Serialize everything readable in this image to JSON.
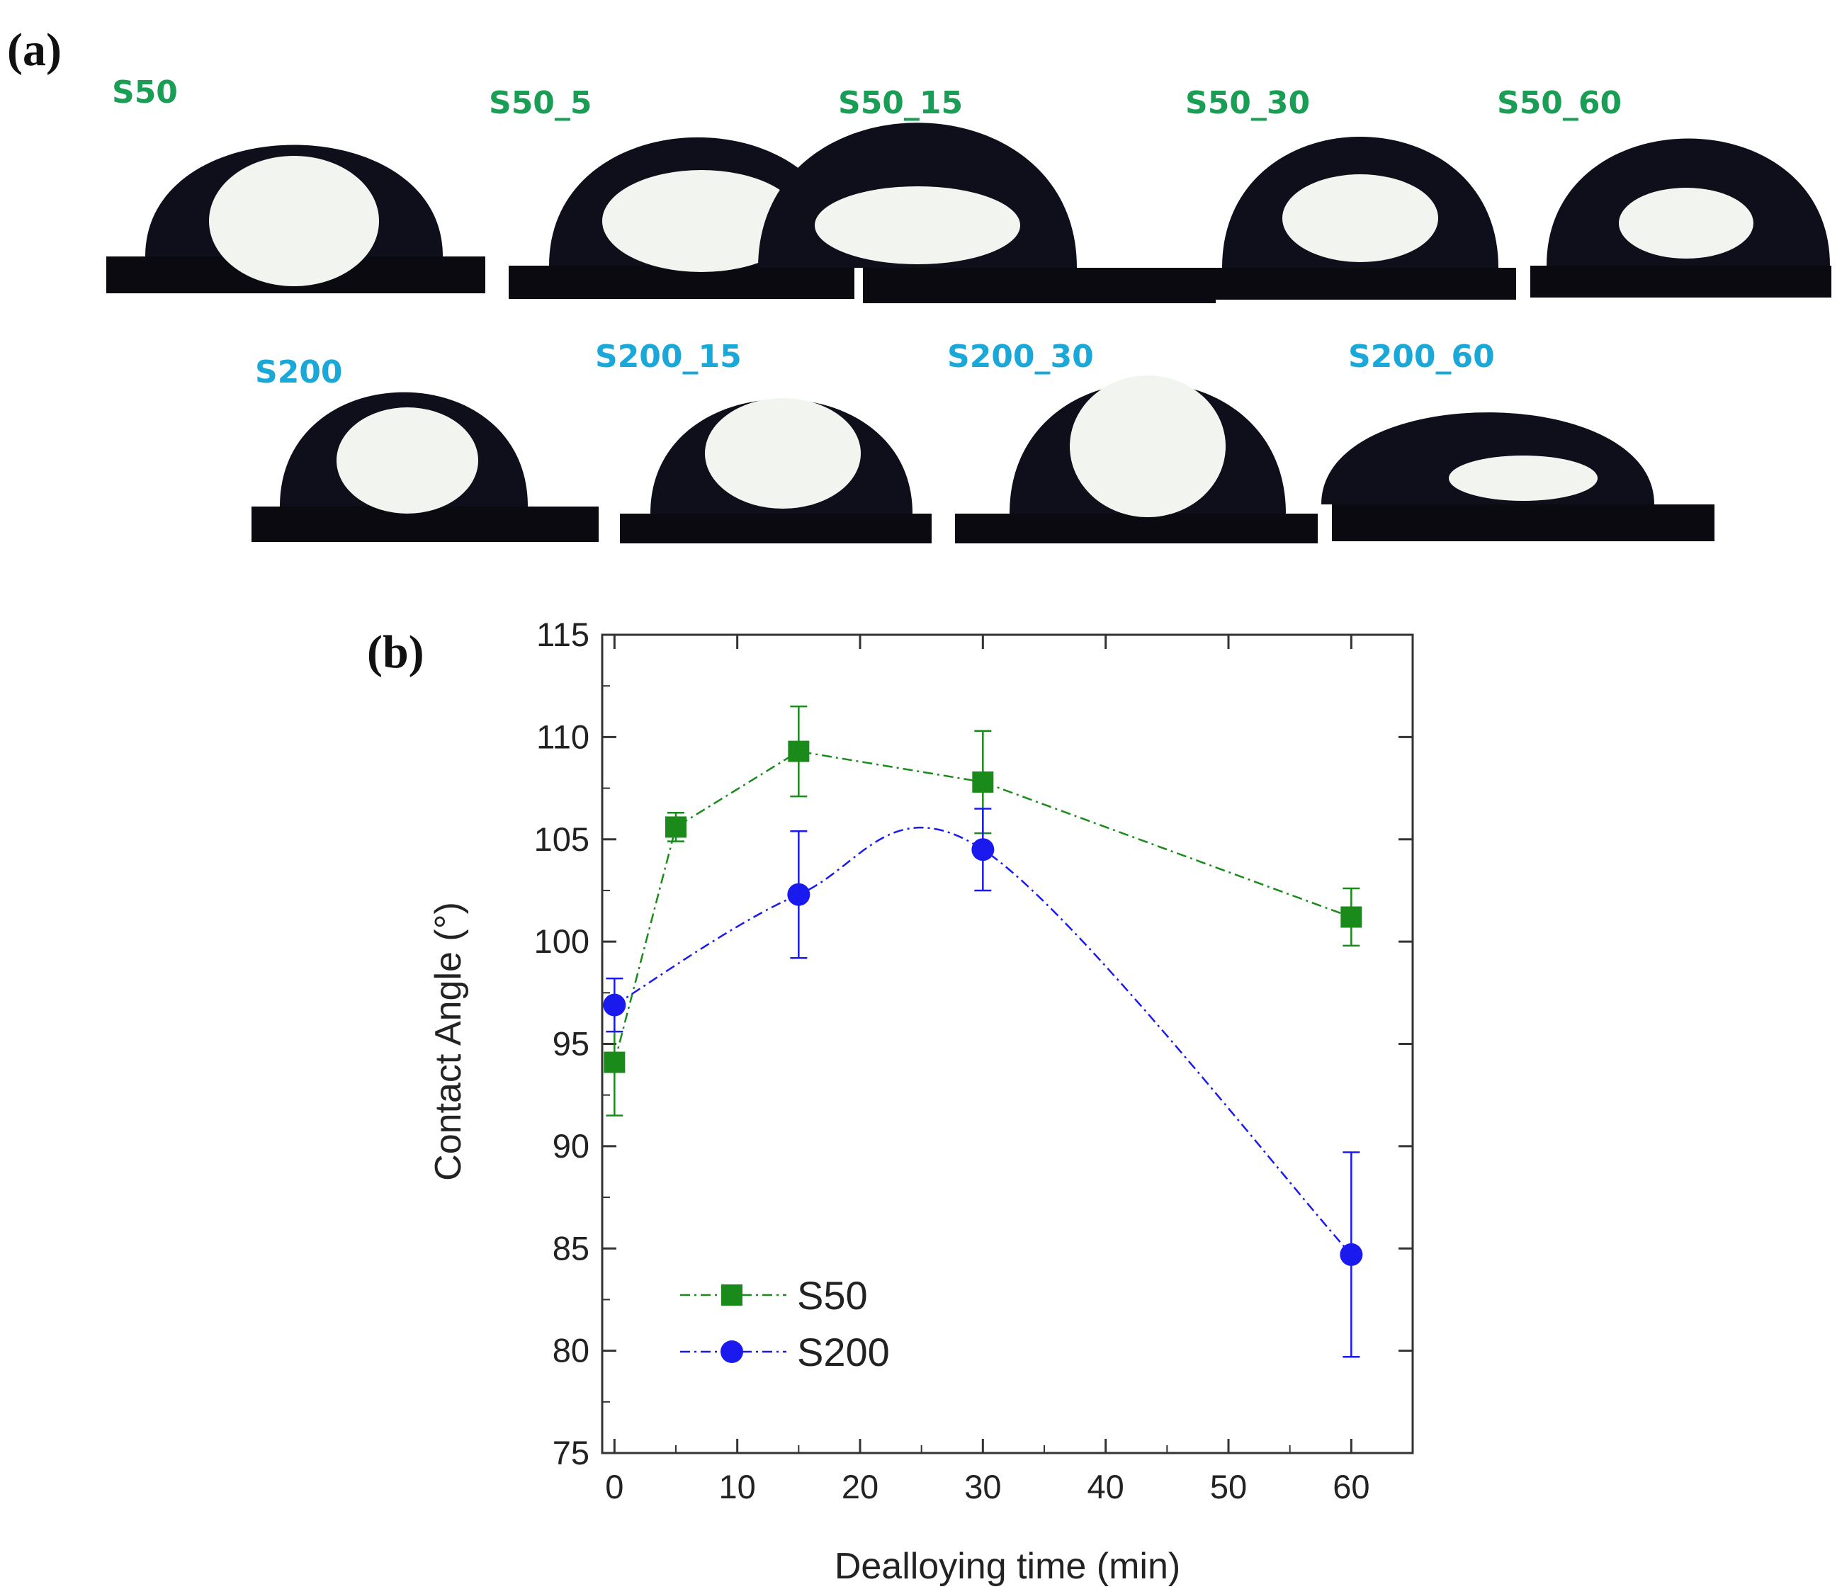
{
  "panel_a": {
    "label": "(a)",
    "row1": [
      {
        "label": "S50"
      },
      {
        "label": "S50_5"
      },
      {
        "label": "S50_15"
      },
      {
        "label": "S50_30"
      },
      {
        "label": "S50_60"
      }
    ],
    "row2": [
      {
        "label": "S200"
      },
      {
        "label": "S200_15"
      },
      {
        "label": "S200_30"
      },
      {
        "label": "S200_60"
      }
    ],
    "colors": {
      "row1_label": "#1a9e55",
      "row2_label": "#1aa8d8",
      "droplet": "#0e0f1a",
      "substrate": "#0a0a10",
      "highlight": "#f2f4f0"
    }
  },
  "panel_b": {
    "label": "(b)"
  },
  "chart_data": {
    "type": "line",
    "xlabel": "Dealloying time (min)",
    "ylabel": "Contact Angle (°)",
    "xlim": [
      -1,
      65
    ],
    "ylim": [
      75,
      115
    ],
    "xticks": [
      0,
      10,
      20,
      30,
      40,
      50,
      60
    ],
    "yticks": [
      75,
      80,
      85,
      90,
      95,
      100,
      105,
      110,
      115
    ],
    "legend_position": "bottom-left",
    "series": [
      {
        "name": "S50",
        "color": "#1a8a1a",
        "marker": "square",
        "line_style": "dash-dot",
        "x": [
          0,
          5,
          15,
          30,
          60
        ],
        "y": [
          94.1,
          105.6,
          109.3,
          107.8,
          101.2
        ],
        "err": [
          2.6,
          0.7,
          2.2,
          2.5,
          1.4
        ]
      },
      {
        "name": "S200",
        "color": "#1a1aee",
        "marker": "circle",
        "line_style": "dash-dot",
        "x": [
          0,
          15,
          30,
          60
        ],
        "y": [
          96.9,
          102.3,
          104.5,
          84.7
        ],
        "err": [
          1.3,
          3.1,
          2.0,
          5.0
        ]
      }
    ]
  }
}
